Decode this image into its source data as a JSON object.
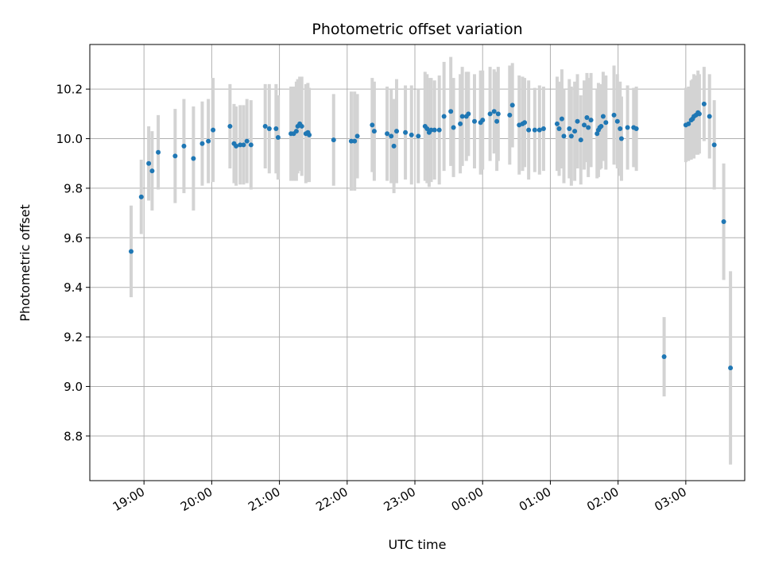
{
  "chart_data": {
    "type": "scatter",
    "title": "Photometric offset variation",
    "xlabel": "UTC time",
    "ylabel": "Photometric offset",
    "x_unit": "hours UTC (times after midnight written as 24+h)",
    "xlim": [
      18.2,
      27.87
    ],
    "ylim": [
      8.62,
      10.38
    ],
    "x_ticks": [
      {
        "value": 19,
        "label": "19:00"
      },
      {
        "value": 20,
        "label": "20:00"
      },
      {
        "value": 21,
        "label": "21:00"
      },
      {
        "value": 22,
        "label": "22:00"
      },
      {
        "value": 23,
        "label": "23:00"
      },
      {
        "value": 24,
        "label": "00:00"
      },
      {
        "value": 25,
        "label": "01:00"
      },
      {
        "value": 26,
        "label": "02:00"
      },
      {
        "value": 27,
        "label": "03:00"
      }
    ],
    "y_ticks": [
      {
        "value": 8.8,
        "label": "8.8"
      },
      {
        "value": 9.0,
        "label": "9.0"
      },
      {
        "value": 9.2,
        "label": "9.2"
      },
      {
        "value": 9.4,
        "label": "9.4"
      },
      {
        "value": 9.6,
        "label": "9.6"
      },
      {
        "value": 9.8,
        "label": "9.8"
      },
      {
        "value": 10.0,
        "label": "10.0"
      },
      {
        "value": 10.2,
        "label": "10.2"
      }
    ],
    "grid": true,
    "colors": {
      "point": "#1f77b4",
      "errorbar": "#d3d3d3",
      "grid": "#b0b0b0",
      "axes": "#000000"
    },
    "points": [
      [
        18.81,
        9.545,
        0.185
      ],
      [
        18.96,
        9.765,
        0.15
      ],
      [
        19.07,
        9.9,
        0.15
      ],
      [
        19.12,
        9.87,
        0.16
      ],
      [
        19.21,
        9.945,
        0.15
      ],
      [
        19.46,
        9.93,
        0.19
      ],
      [
        19.59,
        9.97,
        0.19
      ],
      [
        19.73,
        9.92,
        0.21
      ],
      [
        19.86,
        9.98,
        0.17
      ],
      [
        19.95,
        9.99,
        0.17
      ],
      [
        20.02,
        10.035,
        0.21
      ],
      [
        20.27,
        10.05,
        0.17
      ],
      [
        20.33,
        9.98,
        0.16
      ],
      [
        20.36,
        9.97,
        0.16
      ],
      [
        20.42,
        9.975,
        0.16
      ],
      [
        20.47,
        9.975,
        0.16
      ],
      [
        20.52,
        9.99,
        0.17
      ],
      [
        20.58,
        9.975,
        0.18
      ],
      [
        20.79,
        10.05,
        0.17
      ],
      [
        20.85,
        10.04,
        0.18
      ],
      [
        20.95,
        10.04,
        0.18
      ],
      [
        20.98,
        10.005,
        0.17
      ],
      [
        21.17,
        10.02,
        0.19
      ],
      [
        21.21,
        10.02,
        0.19
      ],
      [
        21.25,
        10.03,
        0.2
      ],
      [
        21.27,
        10.05,
        0.19
      ],
      [
        21.3,
        10.06,
        0.19
      ],
      [
        21.33,
        10.05,
        0.2
      ],
      [
        21.39,
        10.02,
        0.2
      ],
      [
        21.42,
        10.025,
        0.2
      ],
      [
        21.44,
        10.015,
        0.19
      ],
      [
        21.8,
        9.995,
        0.185
      ],
      [
        22.06,
        9.99,
        0.2
      ],
      [
        22.11,
        9.99,
        0.2
      ],
      [
        22.15,
        10.01,
        0.17
      ],
      [
        22.37,
        10.055,
        0.19
      ],
      [
        22.4,
        10.03,
        0.2
      ],
      [
        22.59,
        10.02,
        0.19
      ],
      [
        22.65,
        10.01,
        0.19
      ],
      [
        22.69,
        9.97,
        0.19
      ],
      [
        22.73,
        10.03,
        0.21
      ],
      [
        22.86,
        10.025,
        0.19
      ],
      [
        22.95,
        10.015,
        0.2
      ],
      [
        23.05,
        10.01,
        0.19
      ],
      [
        23.15,
        10.05,
        0.22
      ],
      [
        23.18,
        10.04,
        0.22
      ],
      [
        23.21,
        10.025,
        0.22
      ],
      [
        23.24,
        10.035,
        0.21
      ],
      [
        23.29,
        10.035,
        0.2
      ],
      [
        23.36,
        10.035,
        0.22
      ],
      [
        23.43,
        10.09,
        0.22
      ],
      [
        23.53,
        10.11,
        0.22
      ],
      [
        23.57,
        10.045,
        0.2
      ],
      [
        23.67,
        10.06,
        0.2
      ],
      [
        23.7,
        10.09,
        0.2
      ],
      [
        23.76,
        10.09,
        0.18
      ],
      [
        23.79,
        10.1,
        0.17
      ],
      [
        23.88,
        10.07,
        0.19
      ],
      [
        23.97,
        10.065,
        0.21
      ],
      [
        24.0,
        10.075,
        0.2
      ],
      [
        24.11,
        10.1,
        0.19
      ],
      [
        24.17,
        10.11,
        0.17
      ],
      [
        24.21,
        10.07,
        0.2
      ],
      [
        24.23,
        10.1,
        0.19
      ],
      [
        24.4,
        10.095,
        0.2
      ],
      [
        24.44,
        10.135,
        0.17
      ],
      [
        24.54,
        10.055,
        0.2
      ],
      [
        24.59,
        10.06,
        0.19
      ],
      [
        24.62,
        10.065,
        0.18
      ],
      [
        24.68,
        10.035,
        0.2
      ],
      [
        24.77,
        10.035,
        0.17
      ],
      [
        24.84,
        10.035,
        0.18
      ],
      [
        24.9,
        10.04,
        0.17
      ],
      [
        25.1,
        10.06,
        0.19
      ],
      [
        25.13,
        10.04,
        0.19
      ],
      [
        25.17,
        10.08,
        0.2
      ],
      [
        25.2,
        10.01,
        0.19
      ],
      [
        25.28,
        10.04,
        0.2
      ],
      [
        25.31,
        10.01,
        0.2
      ],
      [
        25.36,
        10.03,
        0.2
      ],
      [
        25.4,
        10.07,
        0.19
      ],
      [
        25.45,
        9.995,
        0.18
      ],
      [
        25.5,
        10.055,
        0.18
      ],
      [
        25.54,
        10.085,
        0.18
      ],
      [
        25.56,
        10.045,
        0.2
      ],
      [
        25.6,
        10.075,
        0.19
      ],
      [
        25.69,
        10.02,
        0.18
      ],
      [
        25.71,
        10.035,
        0.19
      ],
      [
        25.73,
        10.045,
        0.17
      ],
      [
        25.75,
        10.05,
        0.17
      ],
      [
        25.78,
        10.09,
        0.18
      ],
      [
        25.82,
        10.065,
        0.19
      ],
      [
        25.94,
        10.095,
        0.2
      ],
      [
        25.99,
        10.07,
        0.19
      ],
      [
        26.03,
        10.04,
        0.19
      ],
      [
        26.05,
        10.0,
        0.17
      ],
      [
        26.14,
        10.045,
        0.17
      ],
      [
        26.23,
        10.045,
        0.16
      ],
      [
        26.27,
        10.04,
        0.17
      ],
      [
        26.68,
        9.12,
        0.16
      ],
      [
        27.0,
        10.055,
        0.15
      ],
      [
        27.04,
        10.06,
        0.15
      ],
      [
        27.08,
        10.075,
        0.16
      ],
      [
        27.1,
        10.08,
        0.16
      ],
      [
        27.12,
        10.09,
        0.17
      ],
      [
        27.15,
        10.095,
        0.16
      ],
      [
        27.18,
        10.105,
        0.17
      ],
      [
        27.2,
        10.1,
        0.16
      ],
      [
        27.27,
        10.14,
        0.15
      ],
      [
        27.35,
        10.09,
        0.17
      ],
      [
        27.42,
        9.975,
        0.18
      ],
      [
        27.56,
        9.665,
        0.235
      ],
      [
        27.66,
        9.075,
        0.39
      ]
    ]
  }
}
